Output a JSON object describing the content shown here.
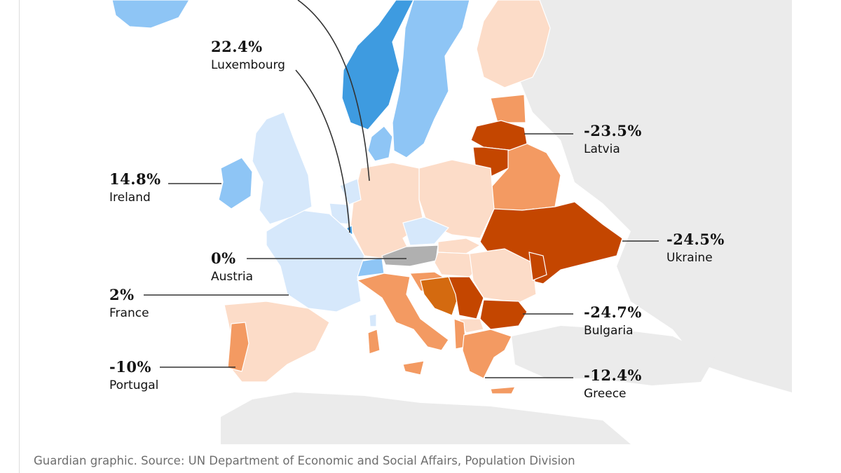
{
  "map_labels": {
    "luxembourg": {
      "value": "22.4%",
      "name": "Luxembourg"
    },
    "ireland": {
      "value": "14.8%",
      "name": "Ireland"
    },
    "austria": {
      "value": "0%",
      "name": "Austria"
    },
    "france": {
      "value": "2%",
      "name": "France"
    },
    "portugal": {
      "value": "-10%",
      "name": "Portugal"
    },
    "latvia": {
      "value": "-23.5%",
      "name": "Latvia"
    },
    "ukraine": {
      "value": "-24.5%",
      "name": "Ukraine"
    },
    "bulgaria": {
      "value": "-24.7%",
      "name": "Bulgaria"
    },
    "greece": {
      "value": "-12.4%",
      "name": "Greece"
    }
  },
  "source": "Guardian graphic. Source: UN Department of Economic and Social Affairs, Population Division",
  "colors": {
    "strong_growth": "#3e9be0",
    "growth": "#8ec5f5",
    "slight_growth": "#d6e8fb",
    "no_change": "#b0b0b0",
    "slight_decline": "#fcdcc8",
    "decline": "#f39a62",
    "strong_decline": "#d46a10",
    "severe_decline": "#c44600",
    "non_europe": "#ebebeb",
    "leader_line": "#333333"
  }
}
